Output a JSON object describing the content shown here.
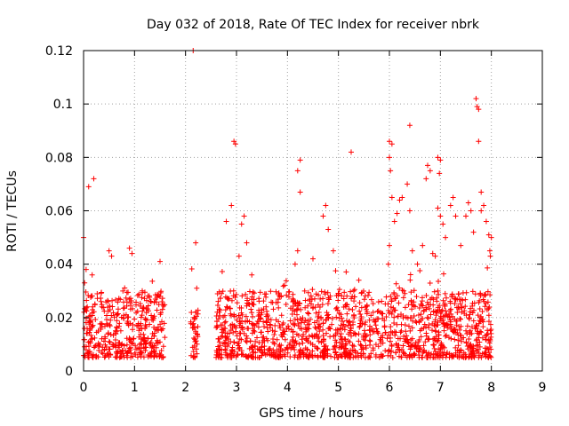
{
  "chart_data": {
    "type": "scatter",
    "title": "Day 032 of 2018, Rate Of TEC Index for receiver nbrk",
    "xlabel": "GPS time / hours",
    "ylabel": "ROTI / TECUs",
    "xlim": [
      0,
      9
    ],
    "ylim": [
      0,
      0.12
    ],
    "xticks": [
      0,
      1,
      2,
      3,
      4,
      5,
      6,
      7,
      8,
      9
    ],
    "yticks": [
      0,
      0.02,
      0.04,
      0.06,
      0.08,
      0.1,
      0.12
    ],
    "grid": true,
    "marker": "+",
    "series_color": "#ff0000",
    "series": [
      {
        "name": "ROTI",
        "coverage_hours": [
          [
            0.0,
            1.6
          ],
          [
            2.1,
            2.25
          ],
          [
            2.6,
            8.0
          ]
        ],
        "typical_range": [
          0.005,
          0.03
        ],
        "max_value": 0.12,
        "points": [
          [
            0.0,
            0.05
          ],
          [
            0.05,
            0.038
          ],
          [
            0.1,
            0.069
          ],
          [
            0.2,
            0.072
          ],
          [
            0.02,
            0.033
          ],
          [
            0.5,
            0.045
          ],
          [
            0.55,
            0.043
          ],
          [
            0.9,
            0.046
          ],
          [
            0.95,
            0.044
          ],
          [
            1.5,
            0.041
          ],
          [
            2.15,
            0.12
          ],
          [
            2.2,
            0.048
          ],
          [
            2.22,
            0.031
          ],
          [
            2.2,
            0.022
          ],
          [
            2.95,
            0.086
          ],
          [
            2.98,
            0.085
          ],
          [
            2.9,
            0.062
          ],
          [
            2.8,
            0.056
          ],
          [
            3.15,
            0.058
          ],
          [
            3.1,
            0.055
          ],
          [
            3.2,
            0.048
          ],
          [
            3.05,
            0.043
          ],
          [
            3.3,
            0.036
          ],
          [
            4.25,
            0.079
          ],
          [
            4.2,
            0.075
          ],
          [
            4.25,
            0.067
          ],
          [
            4.2,
            0.045
          ],
          [
            4.15,
            0.04
          ],
          [
            4.75,
            0.062
          ],
          [
            4.7,
            0.058
          ],
          [
            4.8,
            0.053
          ],
          [
            4.5,
            0.042
          ],
          [
            4.9,
            0.045
          ],
          [
            5.25,
            0.082
          ],
          [
            5.4,
            0.034
          ],
          [
            5.3,
            0.03
          ],
          [
            6.0,
            0.086
          ],
          [
            6.05,
            0.085
          ],
          [
            6.0,
            0.08
          ],
          [
            6.02,
            0.075
          ],
          [
            6.05,
            0.065
          ],
          [
            6.1,
            0.056
          ],
          [
            6.15,
            0.059
          ],
          [
            6.0,
            0.047
          ],
          [
            5.98,
            0.04
          ],
          [
            6.2,
            0.064
          ],
          [
            6.25,
            0.065
          ],
          [
            6.35,
            0.07
          ],
          [
            6.4,
            0.092
          ],
          [
            6.4,
            0.06
          ],
          [
            6.45,
            0.045
          ],
          [
            6.55,
            0.04
          ],
          [
            6.65,
            0.047
          ],
          [
            6.75,
            0.077
          ],
          [
            6.8,
            0.075
          ],
          [
            6.72,
            0.072
          ],
          [
            6.85,
            0.044
          ],
          [
            6.9,
            0.043
          ],
          [
            6.95,
            0.08
          ],
          [
            7.0,
            0.079
          ],
          [
            6.98,
            0.074
          ],
          [
            6.95,
            0.061
          ],
          [
            7.0,
            0.058
          ],
          [
            7.05,
            0.055
          ],
          [
            7.1,
            0.05
          ],
          [
            7.2,
            0.062
          ],
          [
            7.25,
            0.065
          ],
          [
            7.3,
            0.058
          ],
          [
            7.4,
            0.047
          ],
          [
            7.5,
            0.058
          ],
          [
            7.55,
            0.063
          ],
          [
            7.6,
            0.06
          ],
          [
            7.65,
            0.052
          ],
          [
            7.7,
            0.102
          ],
          [
            7.72,
            0.099
          ],
          [
            7.75,
            0.098
          ],
          [
            7.75,
            0.086
          ],
          [
            7.8,
            0.067
          ],
          [
            7.85,
            0.062
          ],
          [
            7.9,
            0.056
          ],
          [
            7.8,
            0.06
          ],
          [
            7.95,
            0.051
          ],
          [
            8.0,
            0.05
          ],
          [
            7.97,
            0.045
          ],
          [
            7.98,
            0.043
          ]
        ]
      }
    ]
  }
}
